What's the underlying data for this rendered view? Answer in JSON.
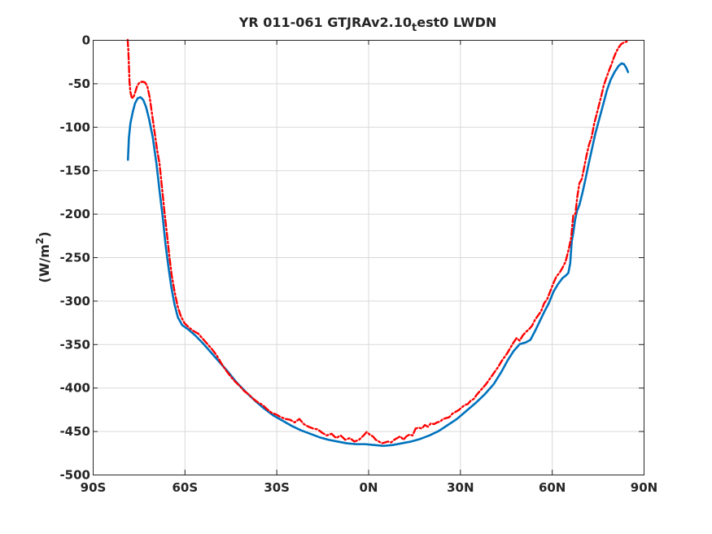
{
  "chart_data": {
    "type": "line",
    "title": {
      "prefix": "YR 011-061 GTJRAv2.10",
      "subscript": "t",
      "suffix": "est0 LWDN"
    },
    "xlabel": "",
    "ylabel": {
      "prefix": "(W/m",
      "superscript": "2",
      "suffix": ")"
    },
    "xlim": [
      -90,
      90
    ],
    "ylim": [
      -500,
      0
    ],
    "grid": true,
    "x_ticks": [
      {
        "value": -90,
        "label": "90S"
      },
      {
        "value": -60,
        "label": "60S"
      },
      {
        "value": -30,
        "label": "30S"
      },
      {
        "value": 0,
        "label": "0N"
      },
      {
        "value": 30,
        "label": "30N"
      },
      {
        "value": 60,
        "label": "60N"
      },
      {
        "value": 90,
        "label": "90N"
      }
    ],
    "y_ticks": [
      {
        "value": 0,
        "label": "0"
      },
      {
        "value": -50,
        "label": "-50"
      },
      {
        "value": -100,
        "label": "-100"
      },
      {
        "value": -150,
        "label": "-150"
      },
      {
        "value": -200,
        "label": "-200"
      },
      {
        "value": -250,
        "label": "-250"
      },
      {
        "value": -300,
        "label": "-300"
      },
      {
        "value": -350,
        "label": "-350"
      },
      {
        "value": -400,
        "label": "-400"
      },
      {
        "value": -450,
        "label": "-450"
      },
      {
        "value": -500,
        "label": "-500"
      }
    ],
    "series": [
      {
        "color": "#0072bd",
        "dash": "solid",
        "points": [
          [
            -78.5,
            -138
          ],
          [
            -78.2,
            -113
          ],
          [
            -77.7,
            -96
          ],
          [
            -77.0,
            -84
          ],
          [
            -76.2,
            -73
          ],
          [
            -75.3,
            -67
          ],
          [
            -74.4,
            -66
          ],
          [
            -73.5,
            -69
          ],
          [
            -72.6,
            -77
          ],
          [
            -71.6,
            -91
          ],
          [
            -70.4,
            -112
          ],
          [
            -69.2,
            -142
          ],
          [
            -68.1,
            -176
          ],
          [
            -67.1,
            -205
          ],
          [
            -66.2,
            -236
          ],
          [
            -65.2,
            -263
          ],
          [
            -64.3,
            -285
          ],
          [
            -63.3,
            -304
          ],
          [
            -62.2,
            -319
          ],
          [
            -60.8,
            -328
          ],
          [
            -58.8,
            -333
          ],
          [
            -56.5,
            -340
          ],
          [
            -54.0,
            -349
          ],
          [
            -51.5,
            -359
          ],
          [
            -49.0,
            -369
          ],
          [
            -46.0,
            -381
          ],
          [
            -43.0,
            -394
          ],
          [
            -40.0,
            -405
          ],
          [
            -37.0,
            -415
          ],
          [
            -34.0,
            -424
          ],
          [
            -31.0,
            -432
          ],
          [
            -28.0,
            -438
          ],
          [
            -25.0,
            -444
          ],
          [
            -22.0,
            -449
          ],
          [
            -19.0,
            -453
          ],
          [
            -16.0,
            -457
          ],
          [
            -13.0,
            -460
          ],
          [
            -10.0,
            -462
          ],
          [
            -7.0,
            -464
          ],
          [
            -4.0,
            -465
          ],
          [
            -1.0,
            -465
          ],
          [
            2.0,
            -466
          ],
          [
            5.0,
            -467
          ],
          [
            8.0,
            -466
          ],
          [
            11.0,
            -464
          ],
          [
            14.0,
            -462
          ],
          [
            17.0,
            -459
          ],
          [
            20.0,
            -455
          ],
          [
            23.0,
            -450
          ],
          [
            26.0,
            -443
          ],
          [
            29.0,
            -436
          ],
          [
            32.0,
            -427
          ],
          [
            35.0,
            -418
          ],
          [
            38.0,
            -408
          ],
          [
            41.0,
            -396
          ],
          [
            43.5,
            -382
          ],
          [
            45.5,
            -369
          ],
          [
            47.5,
            -358
          ],
          [
            49.5,
            -350
          ],
          [
            51.5,
            -348
          ],
          [
            53.0,
            -345
          ],
          [
            54.5,
            -335
          ],
          [
            56.0,
            -324
          ],
          [
            57.5,
            -313
          ],
          [
            59.0,
            -303
          ],
          [
            60.5,
            -290
          ],
          [
            62.0,
            -281
          ],
          [
            63.5,
            -274
          ],
          [
            64.6,
            -271
          ],
          [
            65.4,
            -268
          ],
          [
            66.0,
            -257
          ],
          [
            66.5,
            -232
          ],
          [
            67.0,
            -222
          ],
          [
            67.6,
            -207
          ],
          [
            68.2,
            -197
          ],
          [
            69.0,
            -190
          ],
          [
            70.0,
            -176
          ],
          [
            71.0,
            -160
          ],
          [
            72.0,
            -143
          ],
          [
            73.2,
            -124
          ],
          [
            74.2,
            -108
          ],
          [
            75.5,
            -91
          ],
          [
            76.8,
            -74
          ],
          [
            78.0,
            -58
          ],
          [
            79.2,
            -46
          ],
          [
            80.5,
            -37
          ],
          [
            81.8,
            -30
          ],
          [
            82.8,
            -27
          ],
          [
            83.6,
            -28
          ],
          [
            84.3,
            -32
          ],
          [
            84.9,
            -37
          ]
        ]
      },
      {
        "color": "#ff0000",
        "dash": "dashdot",
        "points": [
          [
            -78.6,
            0
          ],
          [
            -78.4,
            -10
          ],
          [
            -78.2,
            -28
          ],
          [
            -78.0,
            -48
          ],
          [
            -77.7,
            -60
          ],
          [
            -77.3,
            -66
          ],
          [
            -76.8,
            -67
          ],
          [
            -76.2,
            -61
          ],
          [
            -75.5,
            -53
          ],
          [
            -74.7,
            -49
          ],
          [
            -73.8,
            -48
          ],
          [
            -72.9,
            -49
          ],
          [
            -72.2,
            -53
          ],
          [
            -71.4,
            -66
          ],
          [
            -70.6,
            -86
          ],
          [
            -69.8,
            -106
          ],
          [
            -69.0,
            -126
          ],
          [
            -68.2,
            -142
          ],
          [
            -67.4,
            -169
          ],
          [
            -66.6,
            -197
          ],
          [
            -65.8,
            -222
          ],
          [
            -65.0,
            -248
          ],
          [
            -64.2,
            -271
          ],
          [
            -63.3,
            -289
          ],
          [
            -62.3,
            -306
          ],
          [
            -61.2,
            -318
          ],
          [
            -60.0,
            -326
          ],
          [
            -58.5,
            -331
          ],
          [
            -57.0,
            -335
          ],
          [
            -55.5,
            -338
          ],
          [
            -54.0,
            -344
          ],
          [
            -52.5,
            -350
          ],
          [
            -51.0,
            -356
          ],
          [
            -49.5,
            -363
          ],
          [
            -48.0,
            -372
          ],
          [
            -46.5,
            -380
          ],
          [
            -45.0,
            -387
          ],
          [
            -43.5,
            -393
          ],
          [
            -42.0,
            -398
          ],
          [
            -40.5,
            -404
          ],
          [
            -39.0,
            -408
          ],
          [
            -37.5,
            -413
          ],
          [
            -36.0,
            -417
          ],
          [
            -34.5,
            -420
          ],
          [
            -33.0,
            -425
          ],
          [
            -31.5,
            -429
          ],
          [
            -30.0,
            -431
          ],
          [
            -28.5,
            -434
          ],
          [
            -27.0,
            -436
          ],
          [
            -25.5,
            -437
          ],
          [
            -24.0,
            -440
          ],
          [
            -22.5,
            -436
          ],
          [
            -21.0,
            -442
          ],
          [
            -19.5,
            -445
          ],
          [
            -18.0,
            -447
          ],
          [
            -16.5,
            -448
          ],
          [
            -15.0,
            -452
          ],
          [
            -13.5,
            -455
          ],
          [
            -12.0,
            -453
          ],
          [
            -10.5,
            -458
          ],
          [
            -9.0,
            -455
          ],
          [
            -7.5,
            -460
          ],
          [
            -6.0,
            -458
          ],
          [
            -4.5,
            -462
          ],
          [
            -3.0,
            -460
          ],
          [
            -1.5,
            -455
          ],
          [
            -0.5,
            -451
          ],
          [
            0.5,
            -454
          ],
          [
            1.5,
            -456
          ],
          [
            2.5,
            -460
          ],
          [
            3.5,
            -462
          ],
          [
            4.5,
            -464
          ],
          [
            5.5,
            -463
          ],
          [
            6.5,
            -462
          ],
          [
            7.5,
            -463
          ],
          [
            8.5,
            -460
          ],
          [
            9.5,
            -458
          ],
          [
            10.5,
            -456
          ],
          [
            11.5,
            -460
          ],
          [
            12.5,
            -456
          ],
          [
            13.5,
            -454
          ],
          [
            14.5,
            -455
          ],
          [
            15.5,
            -447
          ],
          [
            16.5,
            -446
          ],
          [
            17.5,
            -447
          ],
          [
            18.5,
            -443
          ],
          [
            19.5,
            -445
          ],
          [
            20.5,
            -441
          ],
          [
            21.5,
            -442
          ],
          [
            22.5,
            -440
          ],
          [
            23.5,
            -439
          ],
          [
            24.5,
            -436
          ],
          [
            25.5,
            -435
          ],
          [
            26.5,
            -434
          ],
          [
            27.5,
            -430
          ],
          [
            28.5,
            -428
          ],
          [
            29.5,
            -426
          ],
          [
            30.5,
            -423
          ],
          [
            31.5,
            -420
          ],
          [
            32.5,
            -419
          ],
          [
            33.5,
            -415
          ],
          [
            34.5,
            -413
          ],
          [
            35.5,
            -408
          ],
          [
            36.5,
            -404
          ],
          [
            37.5,
            -400
          ],
          [
            38.5,
            -396
          ],
          [
            39.5,
            -391
          ],
          [
            40.5,
            -386
          ],
          [
            41.5,
            -381
          ],
          [
            42.5,
            -376
          ],
          [
            43.5,
            -370
          ],
          [
            44.5,
            -365
          ],
          [
            45.5,
            -360
          ],
          [
            46.5,
            -354
          ],
          [
            47.5,
            -348
          ],
          [
            48.5,
            -343
          ],
          [
            49.5,
            -346
          ],
          [
            50.5,
            -340
          ],
          [
            51.5,
            -336
          ],
          [
            52.5,
            -333
          ],
          [
            53.5,
            -329
          ],
          [
            54.5,
            -322
          ],
          [
            55.5,
            -317
          ],
          [
            56.5,
            -312
          ],
          [
            57.5,
            -303
          ],
          [
            58.5,
            -298
          ],
          [
            59.5,
            -289
          ],
          [
            60.5,
            -280
          ],
          [
            61.5,
            -272
          ],
          [
            62.5,
            -268
          ],
          [
            63.5,
            -262
          ],
          [
            64.5,
            -255
          ],
          [
            65.5,
            -241
          ],
          [
            66.3,
            -228
          ],
          [
            67.0,
            -202
          ],
          [
            67.7,
            -200
          ],
          [
            68.3,
            -181
          ],
          [
            69.0,
            -165
          ],
          [
            69.8,
            -160
          ],
          [
            70.6,
            -146
          ],
          [
            71.4,
            -132
          ],
          [
            72.2,
            -120
          ],
          [
            73.0,
            -112
          ],
          [
            73.8,
            -97
          ],
          [
            74.6,
            -86
          ],
          [
            75.4,
            -75
          ],
          [
            76.2,
            -64
          ],
          [
            77.0,
            -52
          ],
          [
            77.8,
            -44
          ],
          [
            78.6,
            -36
          ],
          [
            79.4,
            -29
          ],
          [
            80.2,
            -21
          ],
          [
            81.0,
            -14
          ],
          [
            81.8,
            -9
          ],
          [
            82.6,
            -5
          ],
          [
            83.5,
            -3
          ],
          [
            84.5,
            -2
          ]
        ]
      }
    ]
  }
}
